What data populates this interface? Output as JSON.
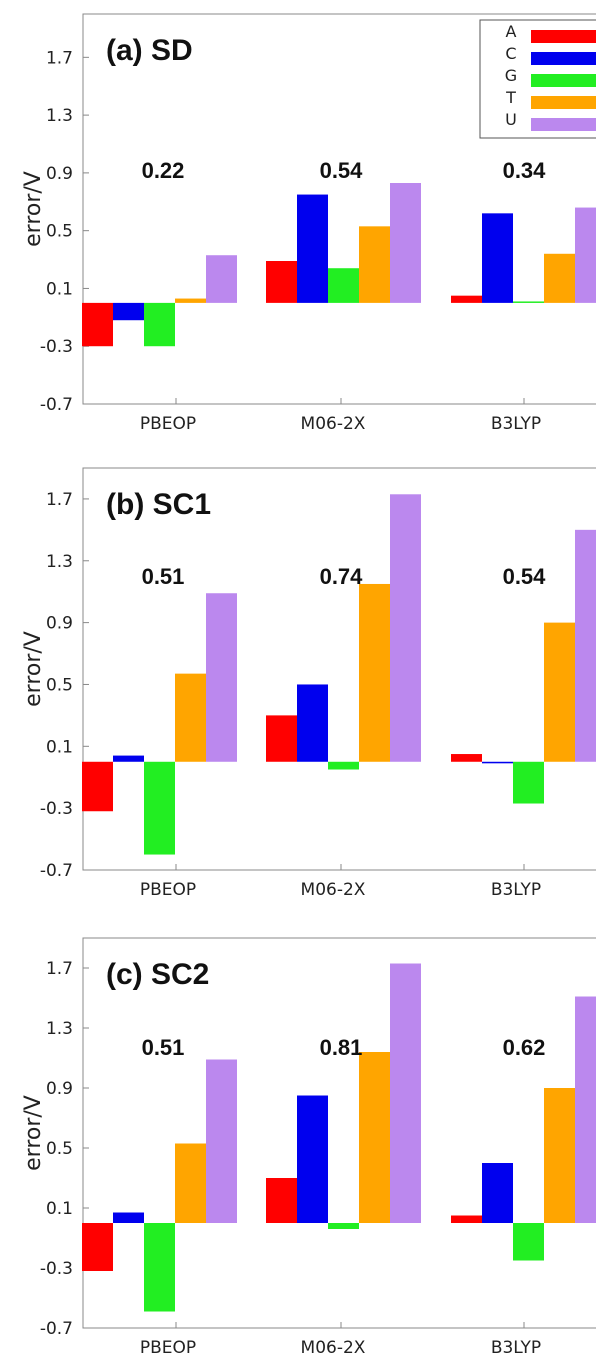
{
  "colors": {
    "A": "#ff0000",
    "C": "#0000ee",
    "G": "#22ee22",
    "T": "#ffa500",
    "U": "#bb88ee"
  },
  "legend": [
    "A",
    "C",
    "G",
    "T",
    "U"
  ],
  "chart_data": [
    {
      "type": "bar",
      "title": "(a) SD",
      "ylabel": "error/V",
      "ylim": [
        -0.7,
        2.0
      ],
      "yticks": [
        "1.7",
        "1.3",
        "0.9",
        "0.5",
        "0.1",
        "-0.3",
        "-0.7"
      ],
      "categories": [
        "PBEOP",
        "M06-2X",
        "B3LYP"
      ],
      "annotations": [
        "0.22",
        "0.54",
        "0.34"
      ],
      "series": [
        {
          "name": "A",
          "values": [
            -0.3,
            0.29,
            0.05
          ]
        },
        {
          "name": "C",
          "values": [
            -0.12,
            0.75,
            0.62
          ]
        },
        {
          "name": "G",
          "values": [
            -0.3,
            0.24,
            0.01
          ]
        },
        {
          "name": "T",
          "values": [
            0.03,
            0.53,
            0.34
          ]
        },
        {
          "name": "U",
          "values": [
            0.33,
            0.83,
            0.66
          ]
        }
      ]
    },
    {
      "type": "bar",
      "title": "(b) SC1",
      "ylabel": "error/V",
      "ylim": [
        -0.7,
        1.9
      ],
      "yticks": [
        "1.7",
        "1.3",
        "0.9",
        "0.5",
        "0.1",
        "-0.3",
        "-0.7"
      ],
      "categories": [
        "PBEOP",
        "M06-2X",
        "B3LYP"
      ],
      "annotations": [
        "0.51",
        "0.74",
        "0.54"
      ],
      "series": [
        {
          "name": "A",
          "values": [
            -0.32,
            0.3,
            0.05
          ]
        },
        {
          "name": "C",
          "values": [
            0.04,
            0.5,
            -0.01
          ]
        },
        {
          "name": "G",
          "values": [
            -0.6,
            -0.05,
            -0.27
          ]
        },
        {
          "name": "T",
          "values": [
            0.57,
            1.15,
            0.9
          ]
        },
        {
          "name": "U",
          "values": [
            1.09,
            1.73,
            1.5
          ]
        }
      ]
    },
    {
      "type": "bar",
      "title": "(c) SC2",
      "ylabel": "error/V",
      "ylim": [
        -0.7,
        1.9
      ],
      "yticks": [
        "1.7",
        "1.3",
        "0.9",
        "0.5",
        "0.1",
        "-0.3",
        "-0.7"
      ],
      "categories": [
        "PBEOP",
        "M06-2X",
        "B3LYP"
      ],
      "annotations": [
        "0.51",
        "0.81",
        "0.62"
      ],
      "series": [
        {
          "name": "A",
          "values": [
            -0.32,
            0.3,
            0.05
          ]
        },
        {
          "name": "C",
          "values": [
            0.07,
            0.85,
            0.4
          ]
        },
        {
          "name": "G",
          "values": [
            -0.59,
            -0.04,
            -0.25
          ]
        },
        {
          "name": "T",
          "values": [
            0.53,
            1.14,
            0.9
          ]
        },
        {
          "name": "U",
          "values": [
            1.09,
            1.73,
            1.51
          ]
        }
      ]
    }
  ]
}
